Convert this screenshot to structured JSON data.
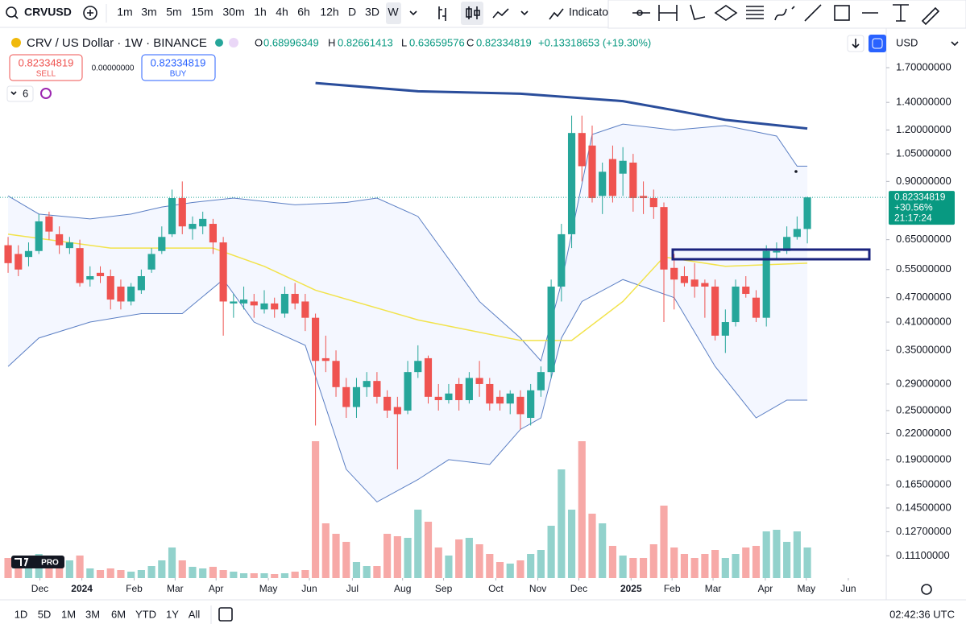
{
  "toolbar": {
    "symbol": "CRVUSD",
    "intervals": [
      "1m",
      "3m",
      "5m",
      "15m",
      "30m",
      "1h",
      "4h",
      "6h",
      "12h",
      "D",
      "3D",
      "W"
    ],
    "indicators": "Indicato"
  },
  "legend": {
    "title": "CRV / US Dollar · 1W · BINANCE",
    "o_label": "O",
    "o": "0.68996349",
    "h_label": "H",
    "h": "0.82661413",
    "l_label": "L",
    "l": "0.63659576",
    "c_label": "C",
    "c": "0.82334819",
    "change": "+0.13318653 (+19.30%)"
  },
  "trade": {
    "sell_price": "0.82334819",
    "sell": "SELL",
    "spread": "0.00000000",
    "buy_price": "0.82334819",
    "buy": "BUY"
  },
  "indicator_count": "6",
  "currency": "USD",
  "logo_badge": "PRO",
  "chart_data": {
    "type": "candlestick",
    "log_scale": true,
    "grid": false,
    "up_color": "#26a69a",
    "down_color": "#ef5350",
    "open": [
      0.63,
      0.6,
      0.59,
      0.61,
      0.74,
      0.67,
      0.62,
      0.62,
      0.52,
      0.54,
      0.53,
      0.5,
      0.46,
      0.49,
      0.55,
      0.61,
      0.67,
      0.82,
      0.69,
      0.7,
      0.71,
      0.64,
      0.455,
      0.455,
      0.46,
      0.44,
      0.455,
      0.43,
      0.48,
      0.46,
      0.42,
      0.335,
      0.33,
      0.285,
      0.255,
      0.285,
      0.295,
      0.27,
      0.255,
      0.25,
      0.31,
      0.335,
      0.27,
      0.265,
      0.29,
      0.265,
      0.3,
      0.29,
      0.27,
      0.26,
      0.27,
      0.24,
      0.28,
      0.31,
      0.5,
      0.67,
      1.18,
      1.1,
      0.83,
      1.02,
      0.94,
      1.0,
      0.83,
      0.82,
      0.78,
      0.555,
      0.53,
      0.52,
      0.51,
      0.5,
      0.38,
      0.41,
      0.5,
      0.47,
      0.42,
      0.605,
      0.61,
      0.66,
      0.68996349
    ],
    "high": [
      0.66,
      0.63,
      0.64,
      0.75,
      0.76,
      0.7,
      0.66,
      0.65,
      0.56,
      0.56,
      0.55,
      0.52,
      0.51,
      0.55,
      0.62,
      0.7,
      0.86,
      0.9,
      0.74,
      0.76,
      0.73,
      0.66,
      0.48,
      0.5,
      0.48,
      0.49,
      0.47,
      0.5,
      0.51,
      0.48,
      0.43,
      0.38,
      0.35,
      0.3,
      0.3,
      0.31,
      0.31,
      0.28,
      0.27,
      0.33,
      0.36,
      0.34,
      0.29,
      0.29,
      0.3,
      0.31,
      0.33,
      0.3,
      0.28,
      0.28,
      0.28,
      0.29,
      0.32,
      0.52,
      0.71,
      1.3,
      1.3,
      1.23,
      1.0,
      1.1,
      1.09,
      1.05,
      0.9,
      0.86,
      0.8,
      0.6,
      0.56,
      0.57,
      0.52,
      0.52,
      0.44,
      0.52,
      0.53,
      0.49,
      0.63,
      0.64,
      0.7,
      0.74,
      0.82661413
    ],
    "low": [
      0.54,
      0.53,
      0.56,
      0.6,
      0.65,
      0.6,
      0.6,
      0.5,
      0.5,
      0.51,
      0.44,
      0.44,
      0.45,
      0.48,
      0.54,
      0.6,
      0.66,
      0.67,
      0.65,
      0.67,
      0.6,
      0.38,
      0.42,
      0.44,
      0.42,
      0.43,
      0.42,
      0.42,
      0.44,
      0.39,
      0.23,
      0.31,
      0.27,
      0.24,
      0.24,
      0.27,
      0.26,
      0.24,
      0.18,
      0.245,
      0.3,
      0.26,
      0.25,
      0.26,
      0.25,
      0.26,
      0.27,
      0.25,
      0.25,
      0.245,
      0.225,
      0.23,
      0.27,
      0.3,
      0.46,
      0.62,
      0.9,
      0.8,
      0.75,
      0.8,
      0.83,
      0.76,
      0.75,
      0.73,
      0.41,
      0.44,
      0.5,
      0.47,
      0.42,
      0.37,
      0.345,
      0.4,
      0.47,
      0.41,
      0.4,
      0.58,
      0.6,
      0.65,
      0.63659576
    ],
    "close": [
      0.57,
      0.55,
      0.61,
      0.72,
      0.68,
      0.63,
      0.64,
      0.51,
      0.53,
      0.53,
      0.465,
      0.46,
      0.5,
      0.53,
      0.6,
      0.66,
      0.82,
      0.7,
      0.71,
      0.73,
      0.64,
      0.46,
      0.46,
      0.465,
      0.45,
      0.455,
      0.44,
      0.48,
      0.455,
      0.42,
      0.33,
      0.33,
      0.285,
      0.255,
      0.285,
      0.295,
      0.27,
      0.25,
      0.245,
      0.31,
      0.33,
      0.27,
      0.265,
      0.275,
      0.265,
      0.3,
      0.29,
      0.26,
      0.26,
      0.275,
      0.245,
      0.28,
      0.31,
      0.5,
      0.67,
      1.18,
      0.98,
      0.82,
      0.95,
      0.83,
      1.01,
      0.82,
      0.82,
      0.78,
      0.55,
      0.52,
      0.51,
      0.5,
      0.5,
      0.38,
      0.41,
      0.5,
      0.48,
      0.42,
      0.61,
      0.61,
      0.66,
      0.69,
      0.82334819
    ],
    "volume": [
      25,
      20,
      22,
      30,
      22,
      18,
      22,
      28,
      12,
      10,
      12,
      10,
      8,
      10,
      15,
      22,
      38,
      22,
      14,
      12,
      14,
      10,
      8,
      6,
      6,
      6,
      5,
      6,
      8,
      10,
      170,
      68,
      55,
      45,
      20,
      15,
      15,
      55,
      52,
      50,
      85,
      70,
      38,
      28,
      48,
      50,
      42,
      30,
      20,
      18,
      22,
      30,
      35,
      65,
      135,
      85,
      170,
      80,
      68,
      40,
      28,
      25,
      25,
      42,
      90,
      38,
      30,
      25,
      30,
      35,
      25,
      30,
      38,
      40,
      58,
      60,
      45,
      58,
      38
    ],
    "ylim": [
      0.098,
      2.12
    ],
    "yticks": [
      {
        "value": 1.7,
        "label": "1.70000000"
      },
      {
        "value": 1.4,
        "label": "1.40000000"
      },
      {
        "value": 1.2,
        "label": "1.20000000"
      },
      {
        "value": 1.05,
        "label": "1.05000000"
      },
      {
        "value": 0.9,
        "label": "0.90000000"
      },
      {
        "value": 0.65,
        "label": "0.65000000"
      },
      {
        "value": 0.55,
        "label": "0.55000000"
      },
      {
        "value": 0.47,
        "label": "0.47000000"
      },
      {
        "value": 0.41,
        "label": "0.41000000"
      },
      {
        "value": 0.35,
        "label": "0.35000000"
      },
      {
        "value": 0.29,
        "label": "0.29000000"
      },
      {
        "value": 0.25,
        "label": "0.25000000"
      },
      {
        "value": 0.22,
        "label": "0.22000000"
      },
      {
        "value": 0.19,
        "label": "0.19000000"
      },
      {
        "value": 0.165,
        "label": "0.16500000"
      },
      {
        "value": 0.145,
        "label": "0.14500000"
      },
      {
        "value": 0.127,
        "label": "0.12700000"
      },
      {
        "value": 0.111,
        "label": "0.11100000"
      }
    ],
    "xlim": [
      -0.79,
      85.7
    ],
    "xticks": [
      {
        "value": 3.1,
        "label": "Dec"
      },
      {
        "value": 7.2,
        "label": "2024"
      },
      {
        "value": 12.3,
        "label": "Feb"
      },
      {
        "value": 16.3,
        "label": "Mar"
      },
      {
        "value": 20.3,
        "label": "Apr"
      },
      {
        "value": 25.4,
        "label": "May"
      },
      {
        "value": 29.4,
        "label": "Jun"
      },
      {
        "value": 33.6,
        "label": "Jul"
      },
      {
        "value": 38.5,
        "label": "Aug"
      },
      {
        "value": 42.5,
        "label": "Sep"
      },
      {
        "value": 47.6,
        "label": "Oct"
      },
      {
        "value": 51.7,
        "label": "Nov"
      },
      {
        "value": 55.7,
        "label": "Dec"
      },
      {
        "value": 60.8,
        "label": "2025"
      },
      {
        "value": 64.8,
        "label": "Feb"
      },
      {
        "value": 68.8,
        "label": "Mar"
      },
      {
        "value": 73.9,
        "label": "Apr"
      },
      {
        "value": 77.9,
        "label": "May"
      },
      {
        "value": 82.0,
        "label": "Jun"
      }
    ],
    "overlays": [
      {
        "color": "#5b7fc4",
        "width": 1,
        "x": [
          0,
          3,
          8,
          12,
          15,
          18,
          22,
          28,
          33,
          36,
          40,
          46,
          50,
          52,
          54,
          57,
          60,
          65,
          70,
          75,
          77,
          78
        ],
        "values": [
          0.83,
          0.75,
          0.73,
          0.75,
          0.78,
          0.8,
          0.82,
          0.79,
          0.8,
          0.82,
          0.74,
          0.46,
          0.375,
          0.33,
          0.51,
          1.17,
          1.24,
          1.2,
          1.23,
          1.16,
          0.98,
          0.98
        ]
      },
      {
        "color": "#5b7fc4",
        "width": 1,
        "x": [
          0,
          3,
          8,
          13,
          17,
          21,
          24,
          29,
          33,
          36,
          40,
          43,
          47,
          50,
          52,
          54,
          56,
          60,
          65,
          69,
          73,
          76,
          78
        ],
        "values": [
          0.32,
          0.375,
          0.41,
          0.43,
          0.43,
          0.52,
          0.41,
          0.36,
          0.18,
          0.15,
          0.17,
          0.19,
          0.185,
          0.225,
          0.24,
          0.375,
          0.46,
          0.52,
          0.47,
          0.32,
          0.24,
          0.265,
          0.265
        ]
      },
      {
        "color": "#2a4d9b",
        "width": 3,
        "x": [
          30,
          40,
          50,
          60,
          65,
          70,
          78
        ],
        "values": [
          1.56,
          1.49,
          1.47,
          1.41,
          1.34,
          1.27,
          1.21
        ]
      },
      {
        "color": "#f2e34b",
        "width": 1.5,
        "x": [
          0,
          10,
          20,
          25,
          30,
          40,
          50,
          55,
          60,
          64,
          70,
          78
        ],
        "values": [
          0.67,
          0.62,
          0.62,
          0.56,
          0.49,
          0.415,
          0.37,
          0.37,
          0.46,
          0.59,
          0.56,
          0.57
        ]
      }
    ],
    "last_price": {
      "value": 0.82334819,
      "label": "0.82334819"
    },
    "last_change": "+30.56%",
    "countdown": "21:17:24"
  },
  "ranges": [
    "1D",
    "5D",
    "1M",
    "3M",
    "6M",
    "YTD",
    "1Y",
    "All"
  ],
  "clock": "02:42:36 UTC"
}
